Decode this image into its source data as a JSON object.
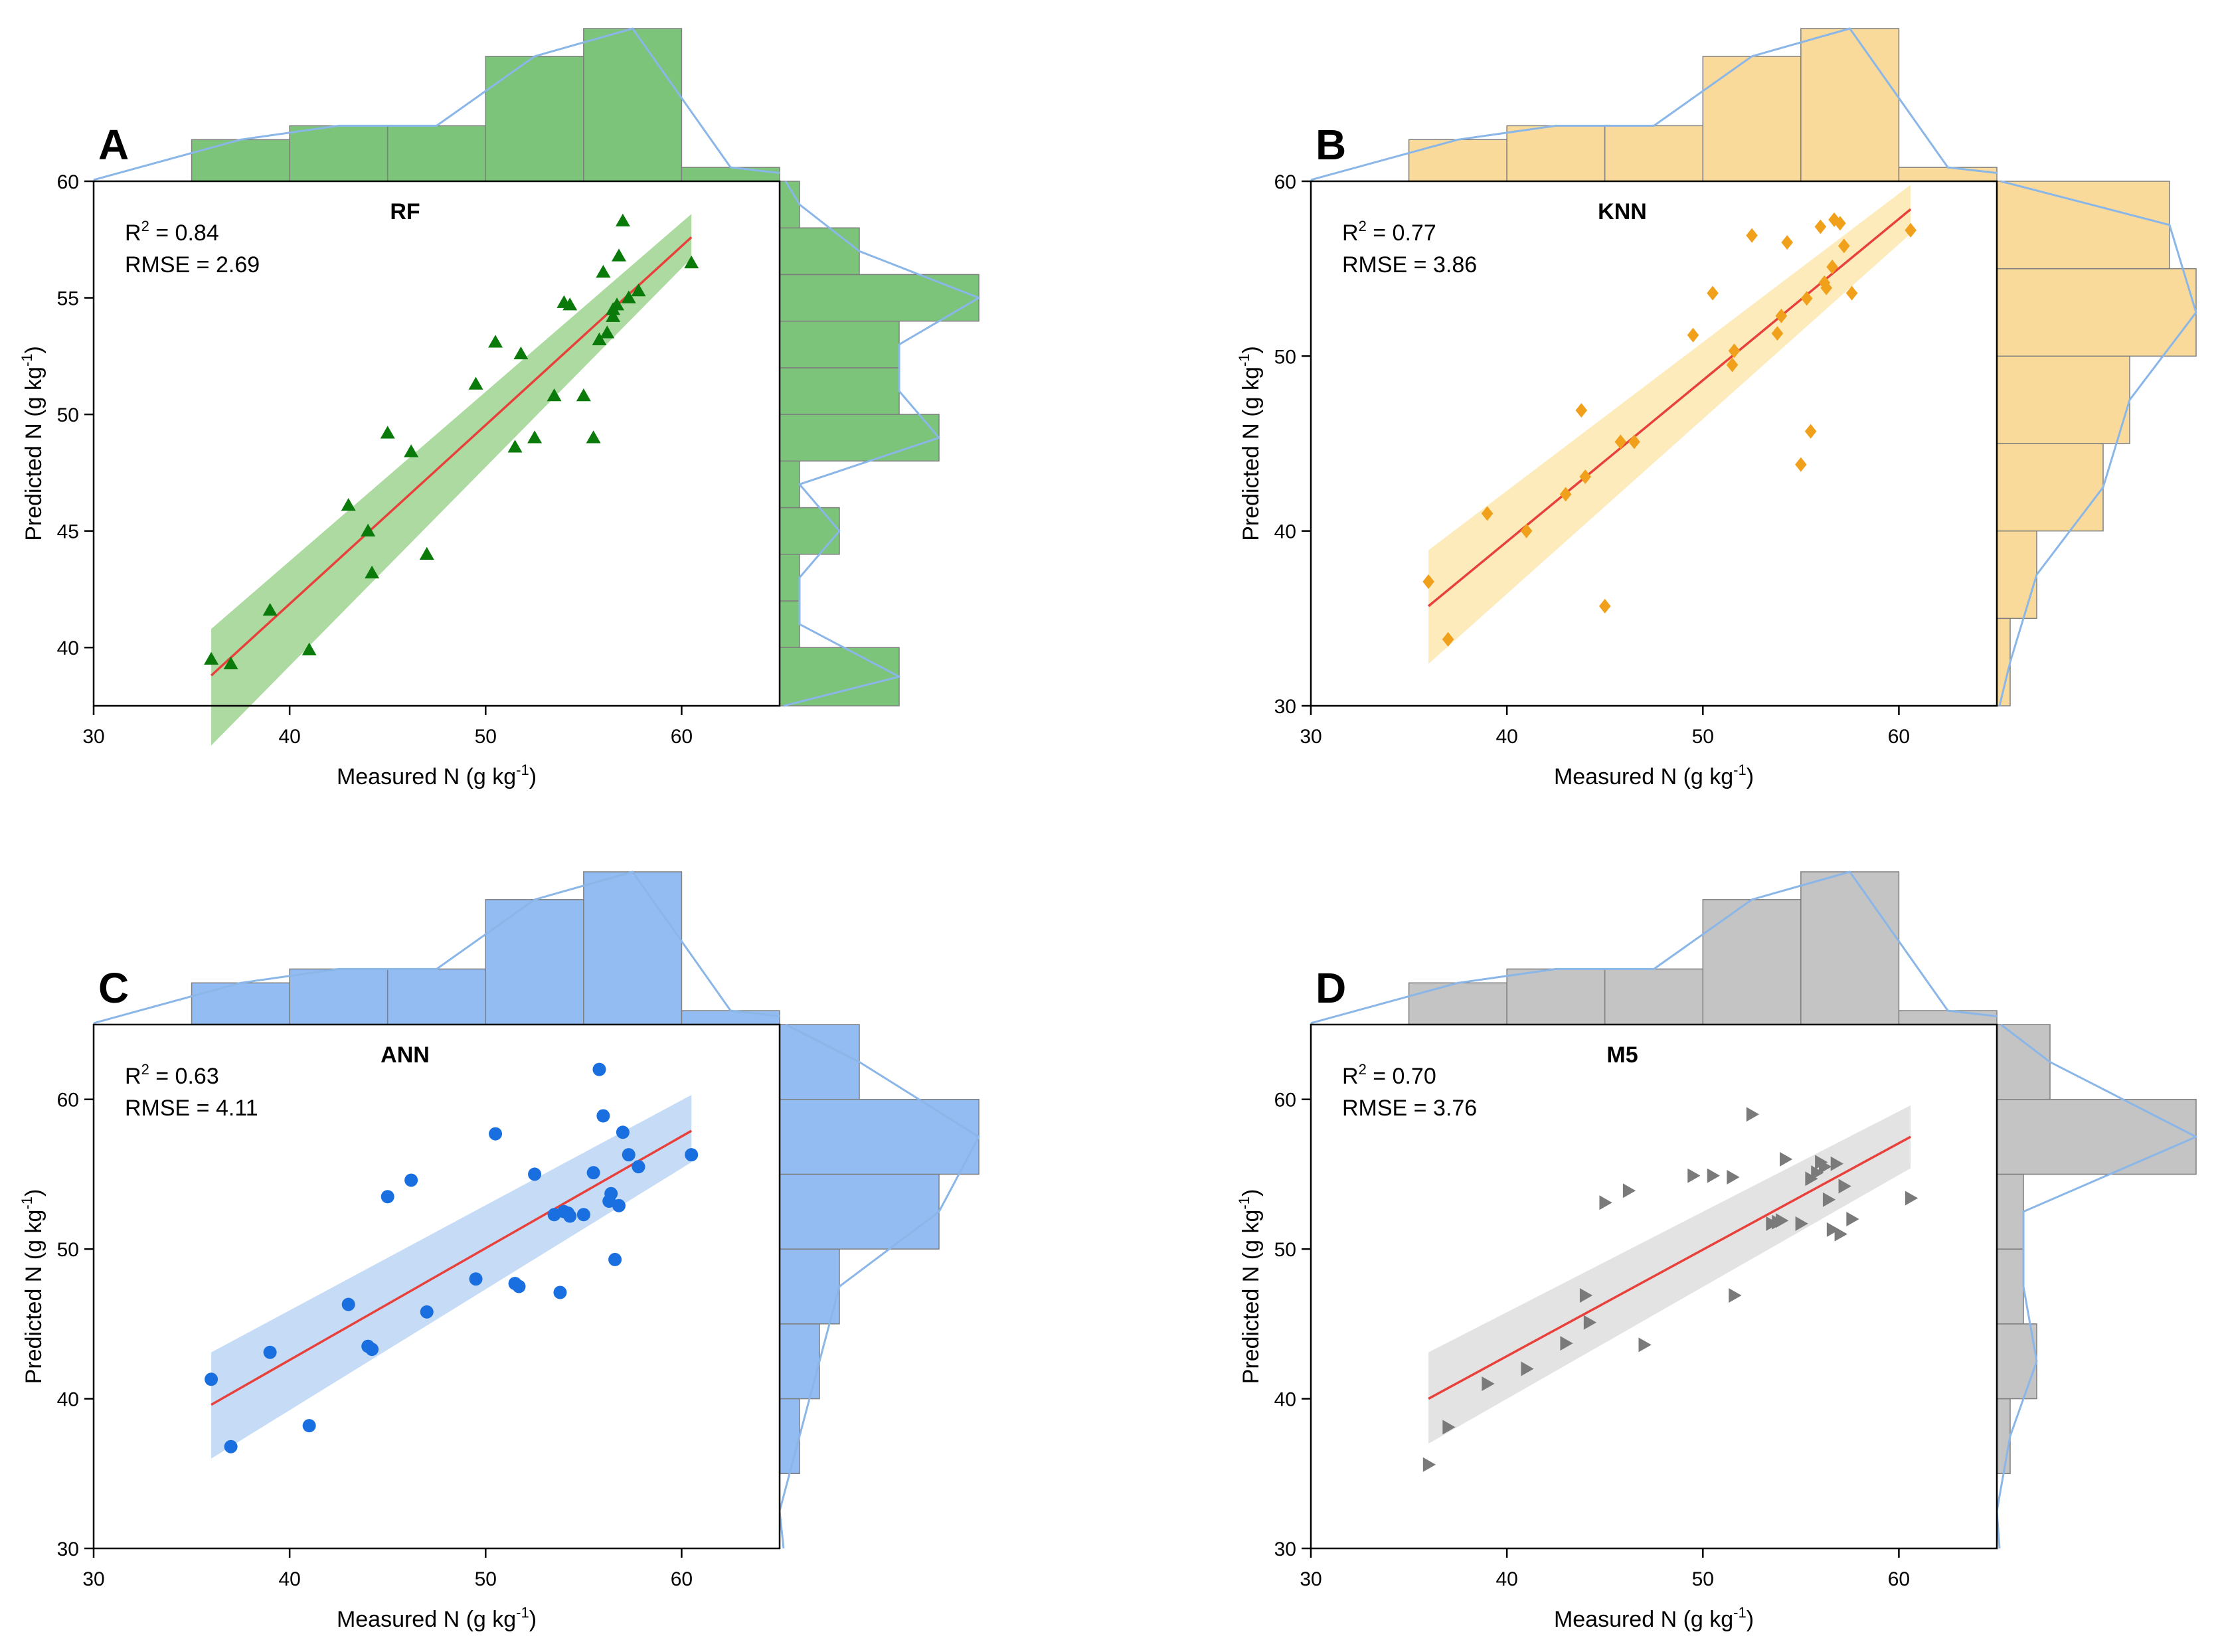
{
  "chart_data": [
    {
      "panel": "A",
      "type": "scatter",
      "title": "RF",
      "r2_label": "R",
      "r2_value": " = 0.84",
      "rmse_label": "RMSE = 2.69",
      "xlabel": "Measured N (g kg",
      "ylabel": "Predicted N (g kg",
      "unit_sup": "-1",
      "close_paren": ")",
      "xlim": [
        30,
        65
      ],
      "ylim": [
        37.5,
        60
      ],
      "xticks": [
        30,
        40,
        50,
        60
      ],
      "yticks": [
        40,
        45,
        50,
        55,
        60
      ],
      "x": [
        36,
        37,
        39,
        41,
        43,
        44,
        44.2,
        45,
        46.2,
        47,
        49.5,
        50.5,
        51.5,
        51.8,
        52.5,
        53.5,
        54,
        54.3,
        55,
        55.5,
        55.8,
        56,
        56.2,
        56.5,
        56.5,
        56.7,
        56.8,
        57,
        57.3,
        57.8,
        60.5
      ],
      "y": [
        39.5,
        39.3,
        41.6,
        39.9,
        46.1,
        45,
        43.2,
        49.2,
        48.4,
        44,
        51.3,
        53.1,
        48.6,
        52.6,
        49,
        50.8,
        54.8,
        54.7,
        50.8,
        49,
        53.2,
        56.1,
        53.5,
        54.5,
        54.2,
        54.7,
        56.8,
        58.3,
        55,
        55.3,
        56.5
      ],
      "fit": {
        "x": [
          36,
          60.5
        ],
        "y": [
          38.8,
          57.6
        ],
        "ci_left": [
          35.8,
          40.8
        ],
        "ci_right": [
          56.7,
          58.6
        ]
      },
      "x_hist": {
        "bins": [
          35,
          40,
          45,
          50,
          55,
          60,
          65
        ],
        "counts": [
          3,
          4,
          4,
          9,
          11,
          1
        ]
      },
      "y_hist": {
        "bins": [
          37.5,
          40,
          42,
          44,
          46,
          48,
          50,
          52,
          54,
          56,
          58,
          60
        ],
        "counts": [
          6,
          1,
          1,
          3,
          1,
          8,
          6,
          6,
          10,
          4,
          1
        ]
      },
      "colors": {
        "marker": "#0a7a0a",
        "band": "#9fd48f",
        "hist": "#7cc47a",
        "fit": "#e8403a"
      }
    },
    {
      "panel": "B",
      "type": "scatter",
      "title": "KNN",
      "r2_label": "R",
      "r2_value": " = 0.77",
      "rmse_label": "RMSE = 3.86",
      "xlabel": "Measured N (g kg",
      "ylabel": "Predicted N (g kg",
      "unit_sup": "-1",
      "close_paren": ")",
      "xlim": [
        30,
        65
      ],
      "ylim": [
        30,
        60
      ],
      "xticks": [
        30,
        40,
        50,
        60
      ],
      "yticks": [
        30,
        40,
        50,
        60
      ],
      "x": [
        36,
        37,
        39,
        41,
        43,
        44,
        43.8,
        45,
        45.8,
        46.5,
        49.5,
        50.5,
        51.5,
        51.6,
        52.5,
        53.8,
        54,
        54.3,
        55,
        55.3,
        55.5,
        56,
        56.2,
        56.3,
        56.6,
        56.7,
        57,
        57.2,
        57.6,
        60.6
      ],
      "y": [
        37.1,
        33.8,
        41,
        40,
        42.1,
        43.1,
        46.9,
        35.7,
        45.1,
        45.1,
        51.2,
        53.6,
        49.5,
        50.3,
        56.9,
        51.3,
        52.3,
        56.5,
        43.8,
        53.3,
        45.7,
        57.4,
        54.2,
        53.9,
        55.1,
        57.8,
        57.6,
        56.3,
        53.6,
        57.2
      ],
      "fit": {
        "x": [
          36,
          60.6
        ],
        "y": [
          35.7,
          58.4
        ],
        "ci_left": [
          32.4,
          38.9
        ],
        "ci_right": [
          57,
          59.8
        ]
      },
      "x_hist": {
        "bins": [
          35,
          40,
          45,
          50,
          55,
          60,
          65
        ],
        "counts": [
          3,
          4,
          4,
          9,
          11,
          1
        ]
      },
      "y_hist": {
        "bins": [
          30,
          35,
          40,
          45,
          50,
          55,
          60
        ],
        "counts": [
          1,
          3,
          8,
          10,
          15,
          13
        ]
      },
      "colors": {
        "marker": "#f0a01a",
        "band": "#fde7b0",
        "hist": "#f9da9b",
        "fit": "#e8403a"
      }
    },
    {
      "panel": "C",
      "type": "scatter",
      "title": "ANN",
      "r2_label": "R",
      "r2_value": " = 0.63",
      "rmse_label": "RMSE = 4.11",
      "xlabel": "Measured N (g kg",
      "ylabel": "Predicted N (g kg",
      "unit_sup": "-1",
      "close_paren": ")",
      "xlim": [
        30,
        65
      ],
      "ylim": [
        30,
        65
      ],
      "xticks": [
        30,
        40,
        50,
        60
      ],
      "yticks": [
        30,
        40,
        50,
        60
      ],
      "x": [
        36,
        37,
        39,
        41,
        43,
        44,
        44.2,
        45,
        46.2,
        47,
        49.5,
        50.5,
        51.5,
        51.7,
        52.5,
        53.5,
        53.8,
        54,
        54.2,
        54.3,
        55,
        55.5,
        55.8,
        56,
        56.3,
        56.4,
        56.6,
        56.8,
        57,
        57.3,
        57.8,
        60.5
      ],
      "y": [
        41.3,
        36.8,
        43.1,
        38.2,
        46.3,
        43.5,
        43.3,
        53.5,
        54.6,
        45.8,
        48,
        57.7,
        47.7,
        47.5,
        55,
        52.3,
        47.1,
        52.5,
        52.4,
        52.2,
        52.3,
        55.1,
        62,
        58.9,
        53.2,
        53.7,
        49.3,
        52.9,
        57.8,
        56.3,
        55.5,
        56.3
      ],
      "fit": {
        "x": [
          36,
          60.5
        ],
        "y": [
          39.6,
          57.9
        ],
        "ci_left": [
          36,
          43.1
        ],
        "ci_right": [
          55.8,
          60.3
        ]
      },
      "x_hist": {
        "bins": [
          35,
          40,
          45,
          50,
          55,
          60,
          65
        ],
        "counts": [
          3,
          4,
          4,
          9,
          11,
          1
        ]
      },
      "y_hist": {
        "bins": [
          30,
          35,
          40,
          45,
          50,
          55,
          60,
          65
        ],
        "counts": [
          0,
          1,
          2,
          3,
          8,
          10,
          4
        ]
      },
      "colors": {
        "marker": "#1a6fe0",
        "band": "#bcd6f5",
        "hist": "#93bcf2",
        "fit": "#e8403a"
      }
    },
    {
      "panel": "D",
      "type": "scatter",
      "title": "M5",
      "r2_label": "R",
      "r2_value": " = 0.70",
      "rmse_label": "RMSE = 3.76",
      "xlabel": "Measured N (g kg",
      "ylabel": "Predicted N (g kg",
      "unit_sup": "-1",
      "close_paren": ")",
      "xlim": [
        30,
        65
      ],
      "ylim": [
        30,
        65
      ],
      "xticks": [
        30,
        40,
        50,
        60
      ],
      "yticks": [
        30,
        40,
        50,
        60
      ],
      "x": [
        36,
        37,
        39,
        41,
        43,
        44,
        44.2,
        45,
        46.2,
        47,
        49.5,
        50.5,
        51.5,
        51.6,
        52.5,
        53.5,
        53.8,
        54,
        54.2,
        55,
        55.5,
        55.8,
        56,
        56.2,
        56.4,
        56.6,
        56.8,
        57,
        57.2,
        57.6,
        60.6
      ],
      "y": [
        35.6,
        38.1,
        41,
        42,
        43.7,
        46.9,
        45.1,
        53.1,
        53.9,
        43.6,
        54.9,
        54.9,
        54.8,
        46.9,
        59,
        51.7,
        51.8,
        51.9,
        56,
        51.7,
        54.7,
        55.1,
        55.8,
        55.5,
        53.3,
        51.3,
        55.7,
        51,
        54.2,
        52,
        53.4
      ],
      "fit": {
        "x": [
          36,
          60.6
        ],
        "y": [
          40,
          57.5
        ],
        "ci_left": [
          37,
          43.1
        ],
        "ci_right": [
          55.4,
          59.6
        ]
      },
      "x_hist": {
        "bins": [
          35,
          40,
          45,
          50,
          55,
          60,
          65
        ],
        "counts": [
          3,
          4,
          4,
          9,
          11,
          1
        ]
      },
      "y_hist": {
        "bins": [
          30,
          35,
          40,
          45,
          50,
          55,
          60,
          65
        ],
        "counts": [
          0,
          1,
          3,
          2,
          2,
          15,
          4
        ]
      },
      "colors": {
        "marker": "#7a7a7a",
        "band": "#dedede",
        "hist": "#c4c4c4",
        "fit": "#e8403a"
      }
    }
  ]
}
